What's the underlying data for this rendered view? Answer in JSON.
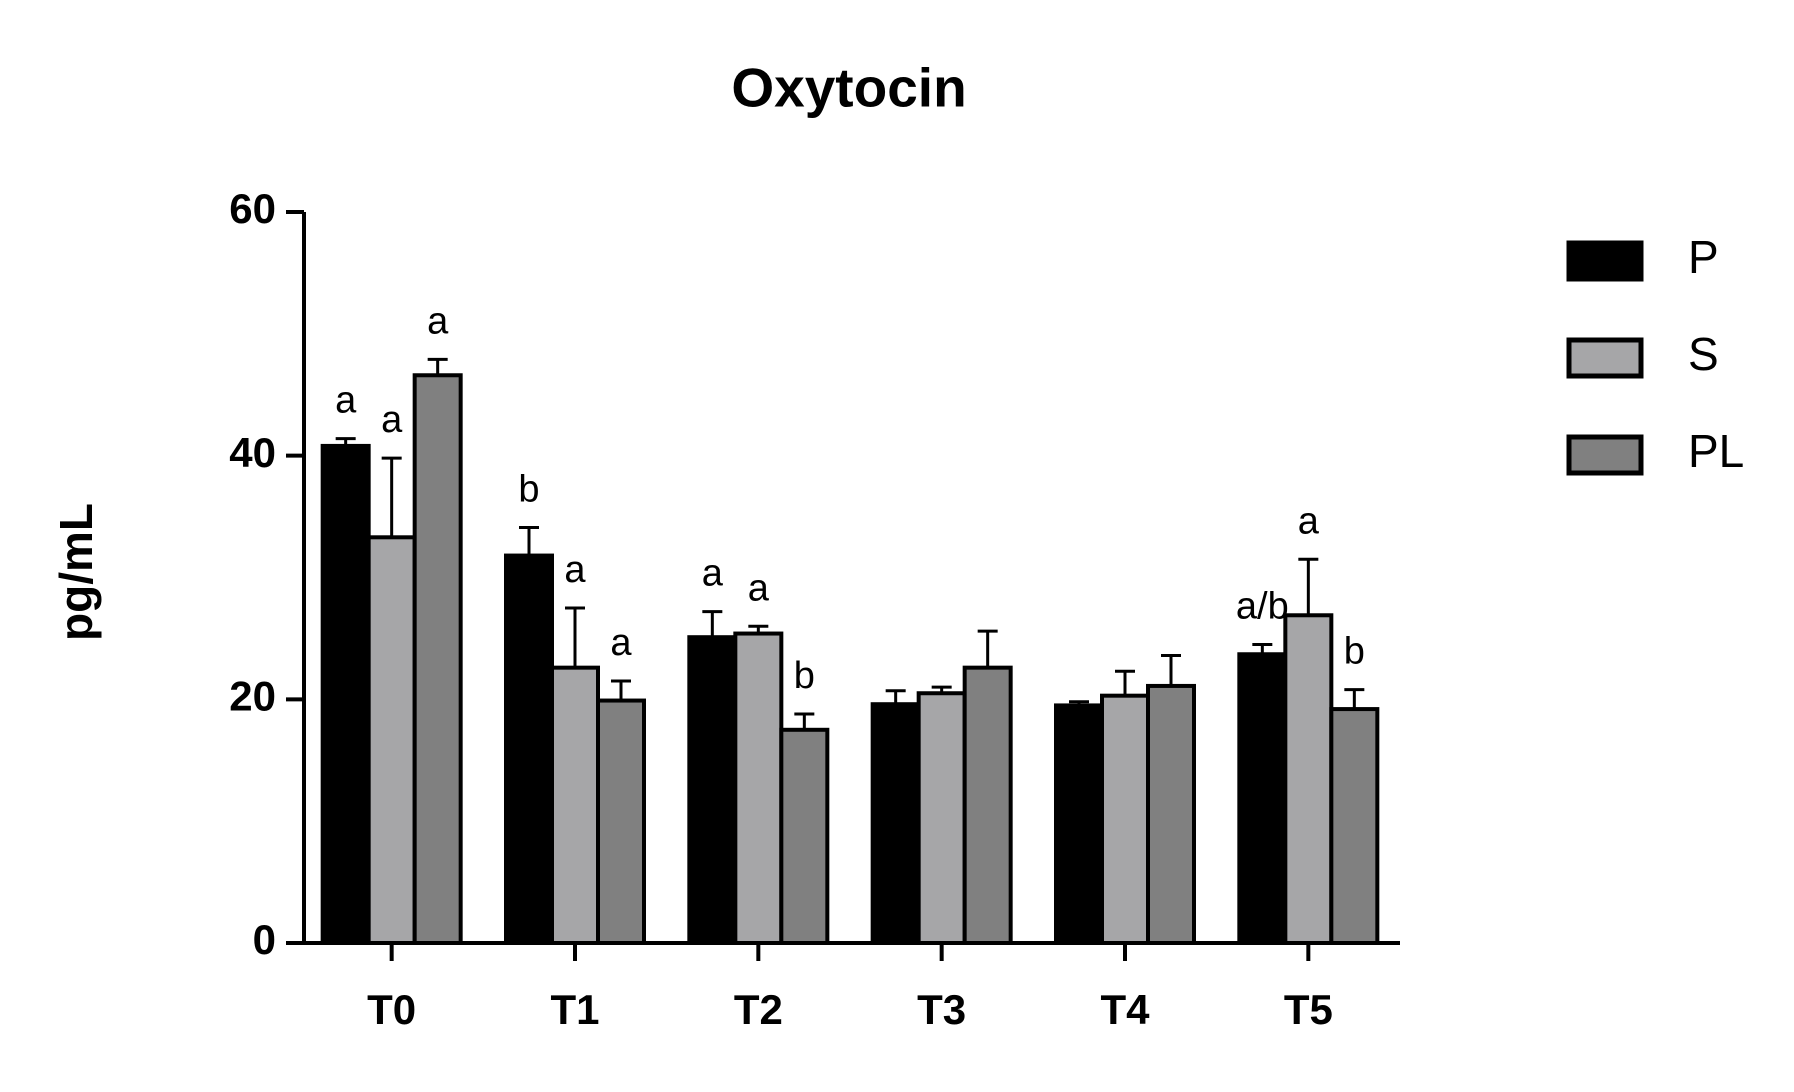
{
  "chart_data": {
    "type": "bar",
    "title": "Oxytocin",
    "y_label": "pg/mL",
    "categories": [
      "T0",
      "T1",
      "T2",
      "T3",
      "T4",
      "T5"
    ],
    "series": [
      {
        "name": "P",
        "color": "#000000",
        "values": [
          40.8,
          31.8,
          25.1,
          19.6,
          19.5,
          23.7
        ],
        "errors": [
          0.6,
          2.3,
          2.1,
          1.1,
          0.3,
          0.8
        ],
        "labels": [
          "a",
          "b",
          "a",
          null,
          null,
          "a/b"
        ]
      },
      {
        "name": "S",
        "color": "#a6a6a8",
        "values": [
          33.3,
          22.6,
          25.4,
          20.5,
          20.3,
          26.9
        ],
        "errors": [
          6.5,
          4.9,
          0.6,
          0.5,
          2.0,
          4.6
        ],
        "labels": [
          "a",
          "a",
          "a",
          null,
          null,
          "a"
        ]
      },
      {
        "name": "PL",
        "color": "#808080",
        "values": [
          46.6,
          19.9,
          17.5,
          22.6,
          21.1,
          19.2
        ],
        "errors": [
          1.3,
          1.6,
          1.3,
          3.0,
          2.5,
          1.6
        ],
        "labels": [
          "a",
          "a",
          "b",
          null,
          null,
          "b"
        ]
      }
    ],
    "ylim": [
      0,
      60
    ],
    "yticks": [
      0,
      20,
      40,
      60
    ],
    "legend": "right"
  }
}
